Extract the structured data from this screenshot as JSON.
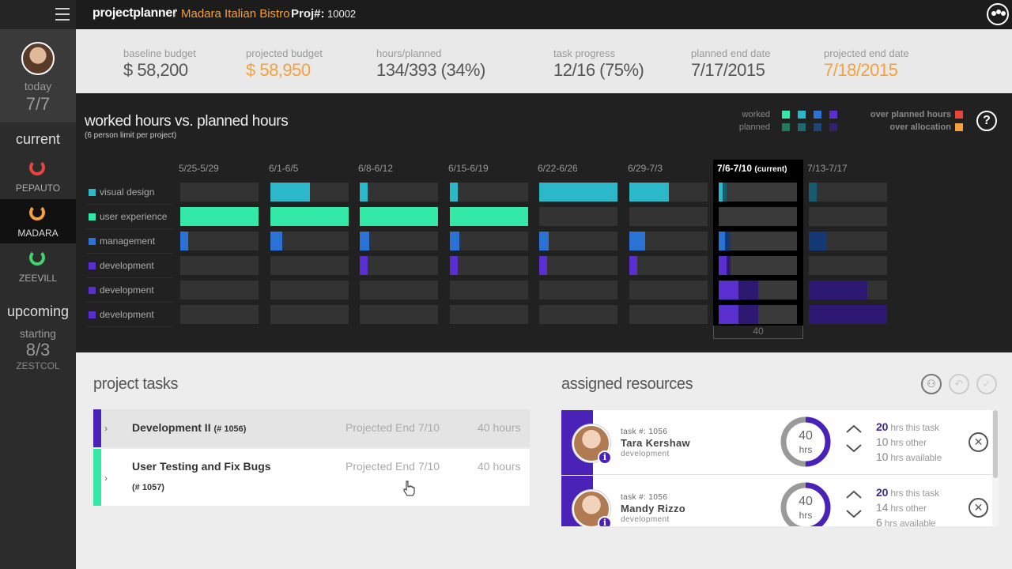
{
  "app": {
    "brand": "projectplanner",
    "separator": "/",
    "project_name": "Madara Italian Bistro",
    "proj_label": "Proj#:",
    "proj_number": "10002"
  },
  "sidebar": {
    "today_label": "today",
    "today_date": "7/7",
    "current_label": "current",
    "projects": [
      {
        "name": "PEPAUTO",
        "ring_color": "#e8453c"
      },
      {
        "name": "MADARA",
        "ring_color": "#f5a03c"
      },
      {
        "name": "ZEEVILL",
        "ring_color": "#3fd46c"
      }
    ],
    "upcoming_label": "upcoming",
    "starting_label": "starting",
    "starting_date": "8/3",
    "starting_project": "ZESTCOL"
  },
  "summary": [
    {
      "label": "baseline budget",
      "value": "$ 58,200",
      "highlight": false
    },
    {
      "label": "projected budget",
      "value": "$ 58,950",
      "highlight": true
    },
    {
      "label": "hours/planned",
      "value": "134/393 (34%)",
      "highlight": false
    },
    {
      "label": "task progress",
      "value": "12/16 (75%)",
      "highlight": false
    },
    {
      "label": "planned end date",
      "value": "7/17/2015",
      "highlight": false
    },
    {
      "label": "projected end date",
      "value": "7/18/2015",
      "highlight": true
    }
  ],
  "chart": {
    "title": "worked hours vs. planned hours",
    "subtitle": "(6 person limit per project)",
    "legend": {
      "worked_label": "worked",
      "planned_label": "planned",
      "over_planned_label": "over planned hours",
      "over_allocation_label": "over allocation",
      "over_planned_color": "#e8453c",
      "over_allocation_color": "#f5a03c"
    },
    "weeks": [
      "5/25-5/29",
      "6/1-6/5",
      "6/8-6/12",
      "6/15-6/19",
      "6/22-6/26",
      "6/29-7/3",
      "7/6-7/10",
      "7/13-7/17"
    ],
    "current_week_index": 6,
    "current_tag": "(current)",
    "current_total": "40"
  },
  "chart_data": {
    "type": "bar",
    "categories": [
      "5/25-5/29",
      "6/1-6/5",
      "6/8-6/12",
      "6/15-6/19",
      "6/22-6/26",
      "6/29-7/3",
      "7/6-7/10",
      "7/13-7/17"
    ],
    "series": [
      {
        "name": "visual design",
        "color": "#2bb8c8",
        "worked": [
          0,
          0.5,
          0.1,
          0.1,
          1.0,
          0.5,
          0.05,
          0
        ],
        "planned": [
          0,
          0,
          0,
          0,
          0,
          0,
          0.1,
          0.1
        ]
      },
      {
        "name": "user experience",
        "color": "#34e8a8",
        "worked": [
          1.0,
          1.0,
          1.0,
          1.0,
          0,
          0,
          0,
          0
        ],
        "planned": [
          0,
          0,
          0,
          0,
          0,
          0,
          0,
          0
        ]
      },
      {
        "name": "management",
        "color": "#2a72d4",
        "worked": [
          0.1,
          0.15,
          0.12,
          0.12,
          0.12,
          0.2,
          0.08,
          0
        ],
        "planned": [
          0,
          0,
          0,
          0,
          0,
          0,
          0.15,
          0.22
        ]
      },
      {
        "name": "development",
        "color": "#5a2fd0",
        "worked": [
          0,
          0,
          0.1,
          0.1,
          0.1,
          0.1,
          0.1,
          0
        ],
        "planned": [
          0,
          0,
          0,
          0,
          0,
          0,
          0.15,
          0
        ]
      },
      {
        "name": "development",
        "color": "#5a2fd0",
        "worked": [
          0,
          0,
          0,
          0,
          0,
          0,
          0.25,
          0
        ],
        "planned": [
          0,
          0,
          0,
          0,
          0,
          0,
          0.5,
          0.75
        ]
      },
      {
        "name": "development",
        "color": "#5a2fd0",
        "worked": [
          0,
          0,
          0,
          0,
          0,
          0,
          0.25,
          0
        ],
        "planned": [
          0,
          0,
          0,
          0,
          0,
          0,
          0.5,
          1.0
        ]
      }
    ]
  },
  "tasks": {
    "title": "project tasks",
    "items": [
      {
        "name": "Development II",
        "number": "(# 1056)",
        "projected_end": "Projected End 7/10",
        "hours": "40 hours",
        "color": "#4b22b8"
      },
      {
        "name": "User Testing and Fix Bugs",
        "number": "(# 1057)",
        "projected_end": "Projected End 7/10",
        "hours": "40 hours",
        "color": "#34e8a8"
      }
    ]
  },
  "resources": {
    "title": "assigned resources",
    "items": [
      {
        "task_num": "task #: 1056",
        "name": "Tara Kershaw",
        "role": "development",
        "allocated": "40",
        "unit": "hrs",
        "this_task_num": "20",
        "this_task_label": "hrs this task",
        "other_num": "10",
        "other_label": "hrs other",
        "available_num": "10",
        "available_label": "hrs available",
        "fill_fraction": 0.5
      },
      {
        "task_num": "task #: 1056",
        "name": "Mandy Rizzo",
        "role": "development",
        "allocated": "40",
        "unit": "hrs",
        "this_task_num": "20",
        "this_task_label": "hrs this task",
        "other_num": "14",
        "other_label": "hrs other",
        "available_num": "6",
        "available_label": "hrs available",
        "fill_fraction": 0.5
      }
    ]
  }
}
